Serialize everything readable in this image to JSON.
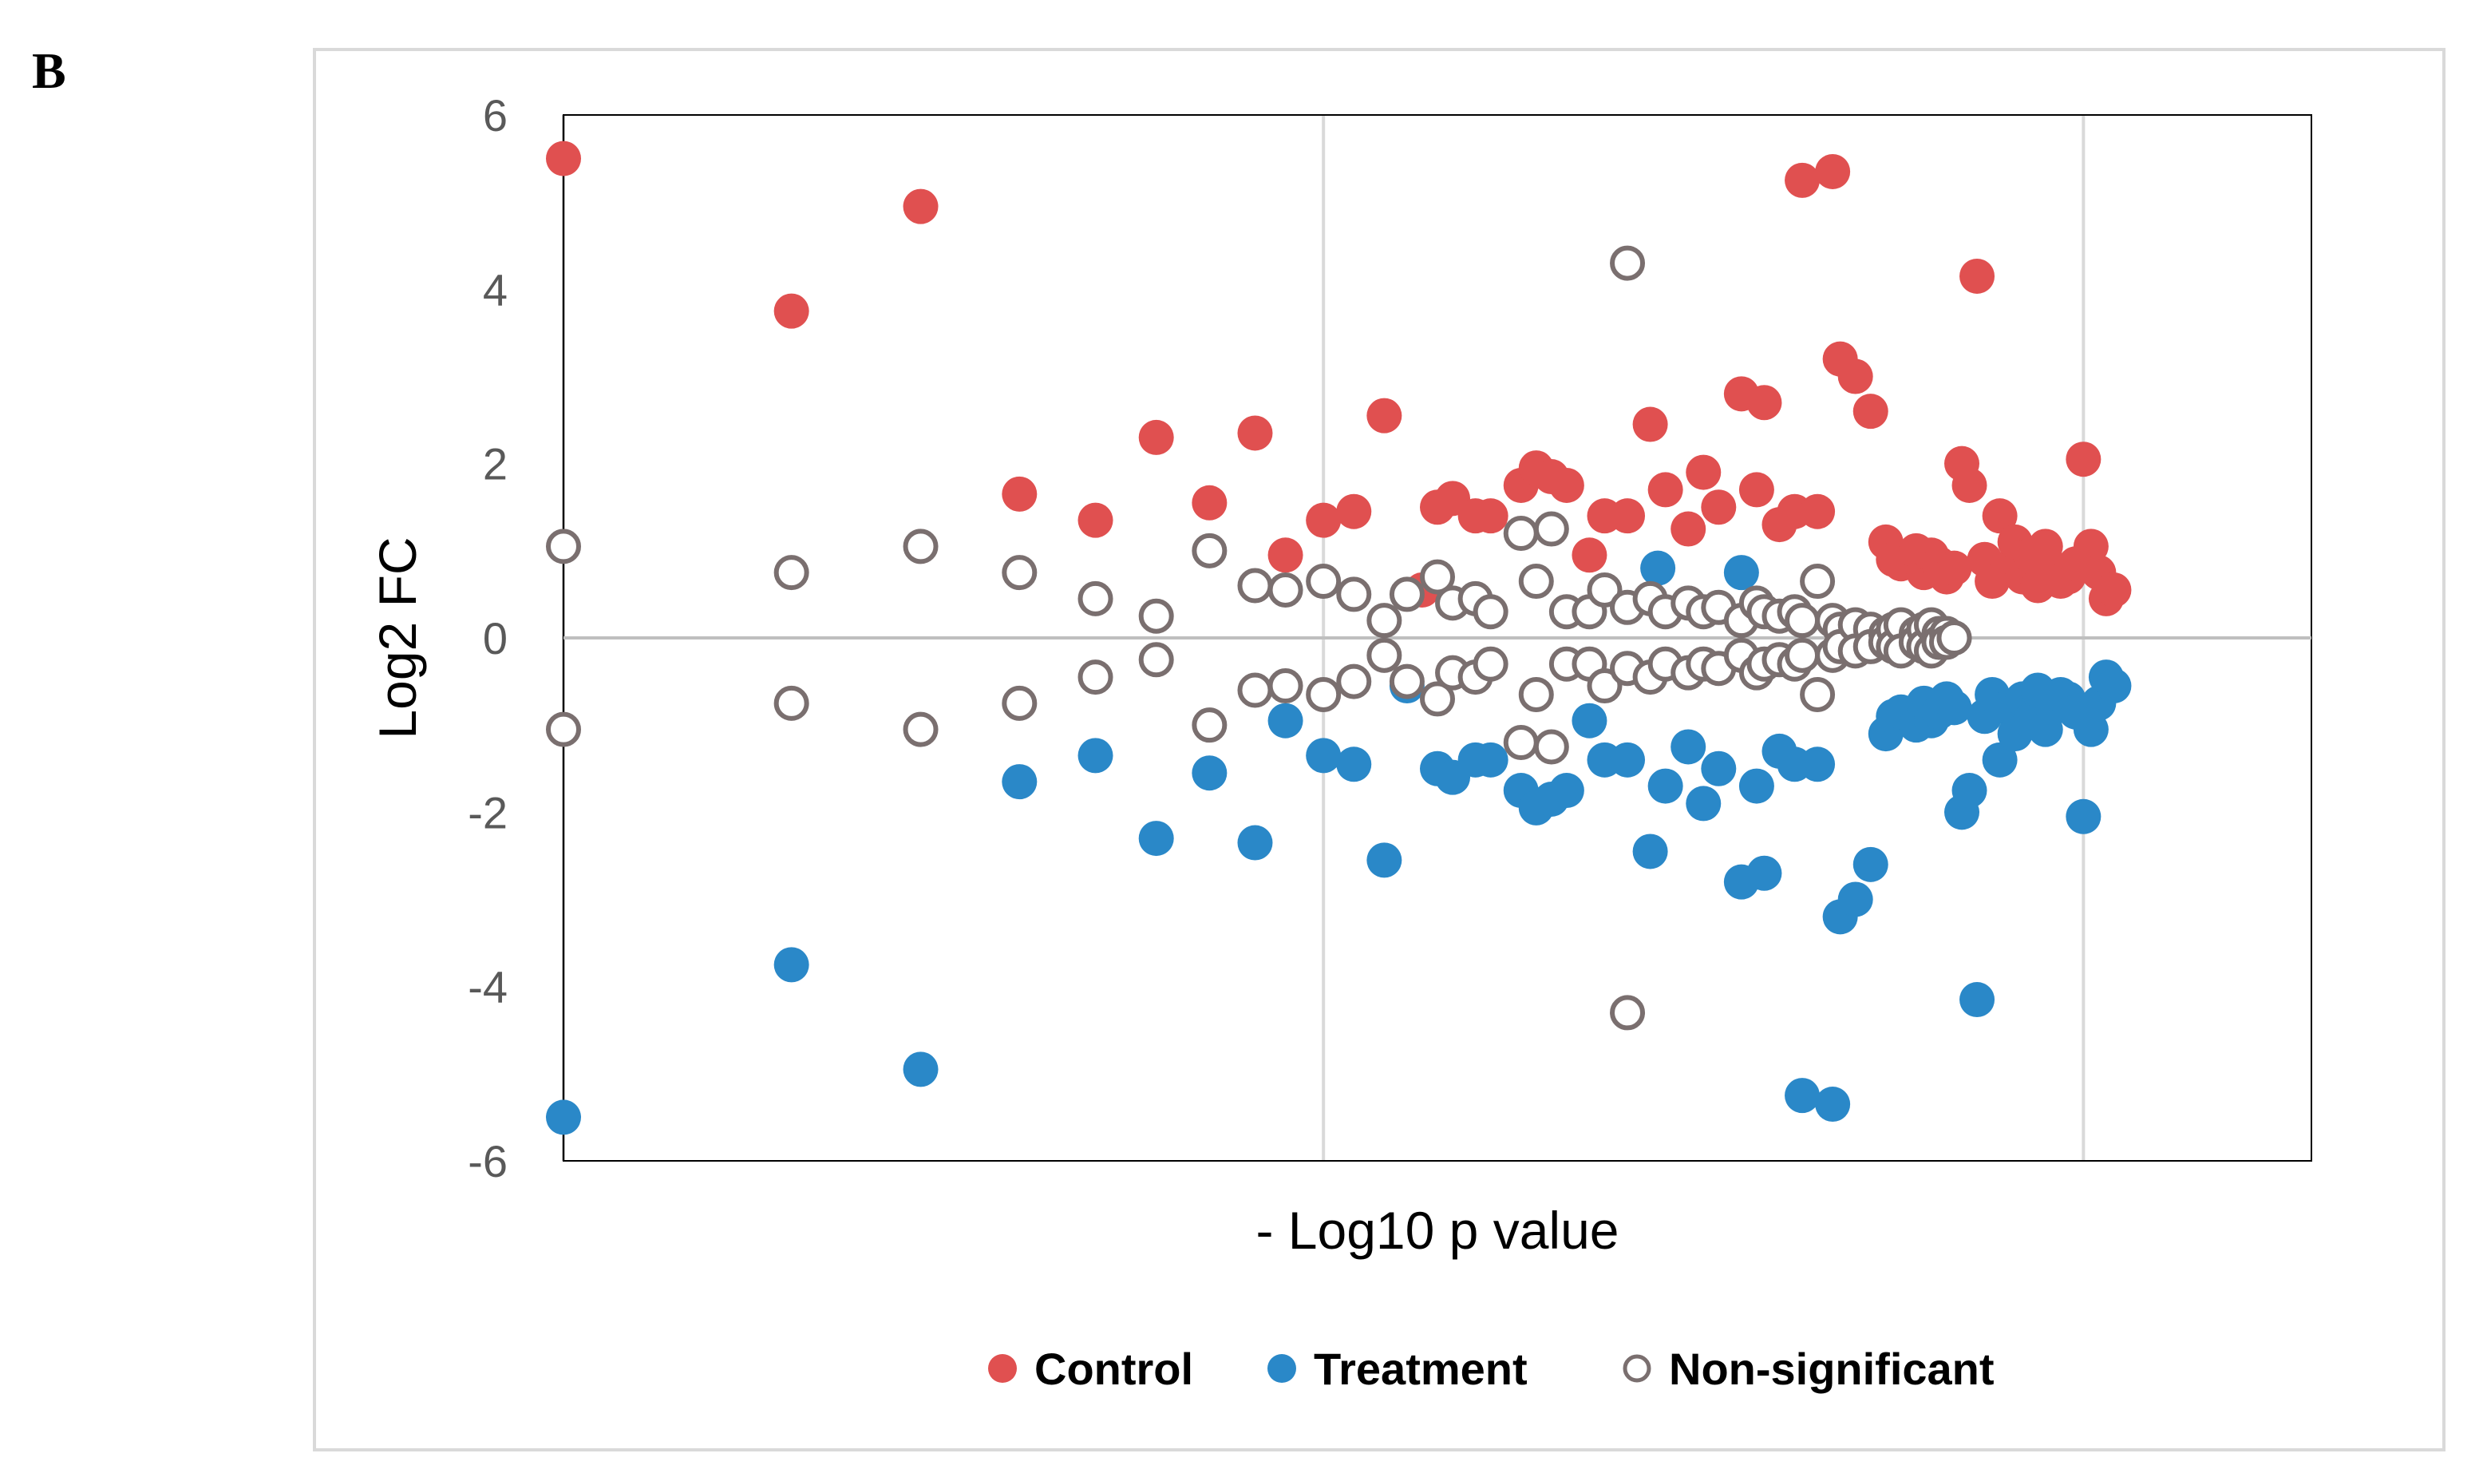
{
  "panel_label": "B",
  "chart_data": {
    "type": "scatter",
    "title": "",
    "xlabel": "- Log10 p value",
    "ylabel": "Log2 FC",
    "ylim": [
      -6,
      6
    ],
    "yticks": [
      "6",
      "4",
      "2",
      "0",
      "-2",
      "-4",
      "-6"
    ],
    "xlim": [
      0,
      2.3
    ],
    "grid": true,
    "legend_position": "bottom",
    "colors": {
      "Control": "#e05050",
      "Treatment": "#2a88c8",
      "Non-significant": "#7a6f6f"
    },
    "series": [
      {
        "name": "Control",
        "marker": "filled",
        "x": [
          0.0,
          0.3,
          0.47,
          0.6,
          0.7,
          0.78,
          0.85,
          0.91,
          0.95,
          1.0,
          1.04,
          1.08,
          1.13,
          1.15,
          1.17,
          1.2,
          1.22,
          1.26,
          1.28,
          1.3,
          1.32,
          1.35,
          1.37,
          1.4,
          1.43,
          1.45,
          1.48,
          1.5,
          1.52,
          1.55,
          1.57,
          1.58,
          1.6,
          1.62,
          1.63,
          1.65,
          1.67,
          1.68,
          1.7,
          1.72,
          1.74,
          1.75,
          1.76,
          1.78,
          1.79,
          1.8,
          1.81,
          1.82,
          1.83,
          1.84,
          1.85,
          1.86,
          1.87,
          1.88,
          1.89,
          1.9,
          1.91,
          1.92,
          1.93,
          1.94,
          1.95,
          1.96,
          1.97,
          1.98,
          1.99,
          2.0,
          2.01,
          2.02,
          2.03,
          2.04
        ],
        "y": [
          5.5,
          3.75,
          4.95,
          1.65,
          1.35,
          2.3,
          1.55,
          2.35,
          0.95,
          1.35,
          1.45,
          2.55,
          0.55,
          1.5,
          1.6,
          1.4,
          1.4,
          1.75,
          1.95,
          1.85,
          1.75,
          0.95,
          1.4,
          1.4,
          2.45,
          1.7,
          1.25,
          1.9,
          1.5,
          2.8,
          1.7,
          2.7,
          1.3,
          1.45,
          5.25,
          1.45,
          5.35,
          3.2,
          3.0,
          2.6,
          1.1,
          0.9,
          0.85,
          1.0,
          0.75,
          0.95,
          0.85,
          0.7,
          0.8,
          2.0,
          1.75,
          4.15,
          0.9,
          0.65,
          1.4,
          0.8,
          1.1,
          0.7,
          0.95,
          0.6,
          1.05,
          0.8,
          0.65,
          0.7,
          0.85,
          2.05,
          1.05,
          0.75,
          0.45,
          0.55
        ]
      },
      {
        "name": "Treatment",
        "marker": "filled",
        "x": [
          0.0,
          0.3,
          0.47,
          0.6,
          0.7,
          0.78,
          0.85,
          0.91,
          0.95,
          1.0,
          1.04,
          1.08,
          1.11,
          1.15,
          1.17,
          1.2,
          1.22,
          1.26,
          1.28,
          1.3,
          1.32,
          1.35,
          1.37,
          1.4,
          1.43,
          1.45,
          1.48,
          1.5,
          1.52,
          1.55,
          1.57,
          1.58,
          1.6,
          1.62,
          1.63,
          1.65,
          1.67,
          1.68,
          1.7,
          1.72,
          1.74,
          1.75,
          1.76,
          1.78,
          1.79,
          1.8,
          1.81,
          1.82,
          1.83,
          1.84,
          1.85,
          1.86,
          1.87,
          1.88,
          1.89,
          1.9,
          1.91,
          1.92,
          1.93,
          1.94,
          1.95,
          1.96,
          1.97,
          1.98,
          1.99,
          2.0,
          2.01,
          2.02,
          2.03,
          2.04,
          1.44,
          1.55
        ],
        "y": [
          -5.5,
          -3.75,
          -4.95,
          -1.65,
          -1.35,
          -2.3,
          -1.55,
          -2.35,
          -0.95,
          -1.35,
          -1.45,
          -2.55,
          -0.55,
          -1.5,
          -1.6,
          -1.4,
          -1.4,
          -1.75,
          -1.95,
          -1.85,
          -1.75,
          -0.95,
          -1.4,
          -1.4,
          -2.45,
          -1.7,
          -1.25,
          -1.9,
          -1.5,
          -2.8,
          -1.7,
          -2.7,
          -1.3,
          -1.45,
          -5.25,
          -1.45,
          -5.35,
          -3.2,
          -3.0,
          -2.6,
          -1.1,
          -0.9,
          -0.85,
          -1.0,
          -0.75,
          -0.95,
          -0.85,
          -0.7,
          -0.8,
          -2.0,
          -1.75,
          -4.15,
          -0.9,
          -0.65,
          -1.4,
          -0.8,
          -1.1,
          -0.7,
          -0.95,
          -0.6,
          -1.05,
          -0.8,
          -0.65,
          -0.7,
          -0.85,
          -2.05,
          -1.05,
          -0.75,
          -0.45,
          -0.55,
          0.8,
          0.75
        ]
      },
      {
        "name": "Non-significant",
        "marker": "open",
        "x": [
          0.0,
          0.0,
          0.3,
          0.3,
          0.47,
          0.47,
          0.6,
          0.6,
          0.7,
          0.7,
          0.78,
          0.78,
          0.85,
          0.85,
          0.91,
          0.91,
          0.95,
          0.95,
          1.0,
          1.0,
          1.04,
          1.04,
          1.08,
          1.08,
          1.11,
          1.11,
          1.15,
          1.15,
          1.17,
          1.17,
          1.2,
          1.2,
          1.22,
          1.22,
          1.26,
          1.26,
          1.28,
          1.28,
          1.3,
          1.3,
          1.32,
          1.32,
          1.35,
          1.35,
          1.37,
          1.37,
          1.4,
          1.4,
          1.43,
          1.43,
          1.45,
          1.45,
          1.48,
          1.48,
          1.5,
          1.5,
          1.52,
          1.52,
          1.55,
          1.55,
          1.57,
          1.57,
          1.58,
          1.58,
          1.6,
          1.6,
          1.62,
          1.62,
          1.63,
          1.63,
          1.65,
          1.65,
          1.67,
          1.67,
          1.68,
          1.68,
          1.7,
          1.7,
          1.72,
          1.72,
          1.74,
          1.74,
          1.75,
          1.75,
          1.76,
          1.76,
          1.78,
          1.78,
          1.79,
          1.79,
          1.8,
          1.8,
          1.81,
          1.81,
          1.82,
          1.82,
          1.83,
          1.83,
          1.4,
          1.4
        ],
        "y": [
          1.05,
          -1.05,
          0.75,
          -0.75,
          1.05,
          -1.05,
          0.75,
          -0.75,
          0.45,
          -0.45,
          0.25,
          -0.25,
          1.0,
          -1.0,
          0.6,
          -0.6,
          0.55,
          -0.55,
          0.65,
          -0.65,
          0.5,
          -0.5,
          0.2,
          -0.2,
          0.5,
          -0.5,
          0.7,
          -0.7,
          0.4,
          -0.4,
          0.45,
          -0.45,
          0.3,
          -0.3,
          1.2,
          -1.2,
          0.65,
          -0.65,
          1.25,
          -1.25,
          0.3,
          -0.3,
          0.3,
          -0.3,
          0.55,
          -0.55,
          0.35,
          -0.35,
          0.45,
          -0.45,
          0.3,
          -0.3,
          0.4,
          -0.4,
          0.3,
          -0.3,
          0.35,
          -0.35,
          0.2,
          -0.2,
          0.4,
          -0.4,
          0.3,
          -0.3,
          0.25,
          -0.25,
          0.3,
          -0.3,
          0.2,
          -0.2,
          0.65,
          -0.65,
          0.2,
          -0.2,
          0.1,
          -0.1,
          0.15,
          -0.15,
          0.1,
          -0.1,
          0.05,
          -0.05,
          0.1,
          -0.1,
          0.15,
          -0.15,
          0.05,
          -0.05,
          0.1,
          -0.1,
          0.15,
          -0.15,
          0.05,
          -0.05,
          0.05,
          -0.05,
          0.0,
          0.0,
          4.3,
          -4.3
        ]
      }
    ]
  }
}
